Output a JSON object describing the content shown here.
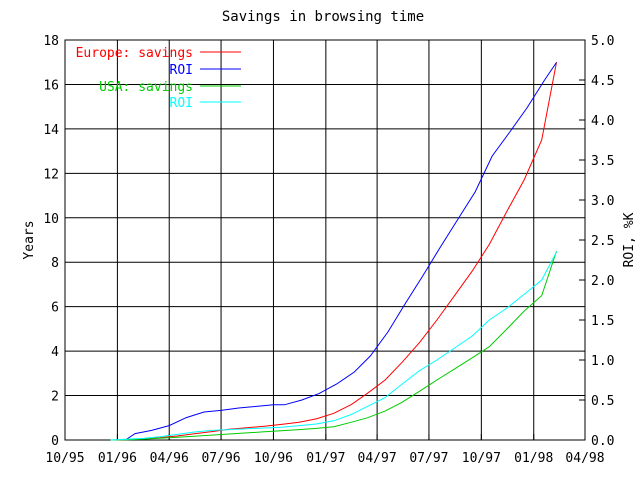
{
  "chart_data": {
    "type": "line",
    "title": "Savings in browsing time",
    "ylabel": "Years",
    "y2label": "ROI, %K",
    "ylim": [
      0,
      18
    ],
    "y2lim": [
      0,
      5
    ],
    "xlim": [
      "1995-10",
      "1998-04"
    ],
    "grid": true,
    "legend_position": "top-left",
    "x_ticks": [
      "10/95",
      "01/96",
      "04/96",
      "07/96",
      "10/96",
      "01/97",
      "04/97",
      "07/97",
      "10/97",
      "01/98",
      "04/98"
    ],
    "y_ticks": [
      "0",
      "2",
      "4",
      "6",
      "8",
      "10",
      "12",
      "14",
      "16",
      "18"
    ],
    "y2_ticks": [
      "0.0",
      "0.5",
      "1.0",
      "1.5",
      "2.0",
      "2.5",
      "3.0",
      "3.5",
      "4.0",
      "4.5",
      "5.0"
    ],
    "series": [
      {
        "name": "Europe: savings",
        "axis": "left",
        "color": "#ff0000",
        "x": [
          "1995-12-20",
          "1996-01-15",
          "1996-02-15",
          "1996-03-15",
          "1996-04-15",
          "1996-05-15",
          "1996-06-15",
          "1996-07-15",
          "1996-08-15",
          "1996-09-15",
          "1996-10-15",
          "1996-11-15",
          "1996-12-15",
          "1997-01-15",
          "1997-02-15",
          "1997-03-15",
          "1997-04-15",
          "1997-05-15",
          "1997-06-15",
          "1997-07-15",
          "1997-08-15",
          "1997-09-15",
          "1997-10-15",
          "1997-11-15",
          "1997-12-15",
          "1998-01-15",
          "1998-02-10"
        ],
        "y": [
          0,
          0.02,
          0.05,
          0.1,
          0.18,
          0.28,
          0.38,
          0.48,
          0.55,
          0.62,
          0.7,
          0.8,
          0.95,
          1.2,
          1.6,
          2.1,
          2.7,
          3.5,
          4.4,
          5.4,
          6.5,
          7.6,
          8.8,
          10.3,
          11.7,
          13.5,
          17.0
        ]
      },
      {
        "name": "ROI",
        "axis": "right",
        "color": "#0000ff",
        "x": [
          "1996-01-15",
          "1996-02-01",
          "1996-03-01",
          "1996-04-01",
          "1996-05-01",
          "1996-06-01",
          "1996-07-01",
          "1996-08-01",
          "1996-09-01",
          "1996-10-01",
          "1996-10-20",
          "1996-11-20",
          "1996-12-20",
          "1997-01-20",
          "1997-02-20",
          "1997-03-20",
          "1997-04-20",
          "1997-05-20",
          "1997-06-20",
          "1997-07-20",
          "1997-08-20",
          "1997-09-20",
          "1997-10-20",
          "1997-11-20",
          "1997-12-20",
          "1998-01-20",
          "1998-02-10"
        ],
        "y": [
          0,
          0.08,
          0.12,
          0.18,
          0.28,
          0.35,
          0.37,
          0.4,
          0.42,
          0.44,
          0.44,
          0.5,
          0.58,
          0.7,
          0.85,
          1.05,
          1.35,
          1.7,
          2.05,
          2.4,
          2.75,
          3.1,
          3.55,
          3.85,
          4.15,
          4.5,
          4.72
        ]
      },
      {
        "name": "USA: savings",
        "axis": "left",
        "color": "#00cc00",
        "x": [
          "1995-12-20",
          "1996-01-15",
          "1996-02-15",
          "1996-03-15",
          "1996-04-15",
          "1996-05-15",
          "1996-06-15",
          "1996-07-15",
          "1996-08-15",
          "1996-09-15",
          "1996-10-15",
          "1996-11-15",
          "1996-12-15",
          "1997-01-15",
          "1997-02-15",
          "1997-03-15",
          "1997-04-15",
          "1997-05-15",
          "1997-06-15",
          "1997-07-15",
          "1997-08-15",
          "1997-09-15",
          "1997-10-15",
          "1997-11-15",
          "1997-12-15",
          "1998-01-15",
          "1998-02-10"
        ],
        "y": [
          0,
          0.01,
          0.04,
          0.08,
          0.12,
          0.17,
          0.22,
          0.27,
          0.32,
          0.37,
          0.42,
          0.47,
          0.52,
          0.6,
          0.8,
          1.0,
          1.3,
          1.7,
          2.2,
          2.7,
          3.2,
          3.7,
          4.2,
          5.0,
          5.8,
          6.5,
          8.5
        ]
      },
      {
        "name": "ROI",
        "axis": "right",
        "color": "#00ffff",
        "x": [
          "1995-12-20",
          "1996-01-15",
          "1996-02-15",
          "1996-03-15",
          "1996-04-15",
          "1996-05-15",
          "1996-06-15",
          "1996-07-15",
          "1996-08-15",
          "1996-09-15",
          "1996-10-15",
          "1996-11-15",
          "1996-12-15",
          "1997-01-15",
          "1997-02-15",
          "1997-03-15",
          "1997-04-15",
          "1997-05-15",
          "1997-06-15",
          "1997-07-15",
          "1997-08-15",
          "1997-09-15",
          "1997-10-15",
          "1997-11-15",
          "1997-12-15",
          "1998-01-15",
          "1998-02-10"
        ],
        "y": [
          0,
          0.01,
          0.02,
          0.04,
          0.07,
          0.1,
          0.12,
          0.13,
          0.14,
          0.15,
          0.16,
          0.18,
          0.2,
          0.24,
          0.32,
          0.42,
          0.53,
          0.7,
          0.87,
          1.0,
          1.15,
          1.3,
          1.5,
          1.65,
          1.82,
          2.0,
          2.35
        ]
      }
    ]
  }
}
